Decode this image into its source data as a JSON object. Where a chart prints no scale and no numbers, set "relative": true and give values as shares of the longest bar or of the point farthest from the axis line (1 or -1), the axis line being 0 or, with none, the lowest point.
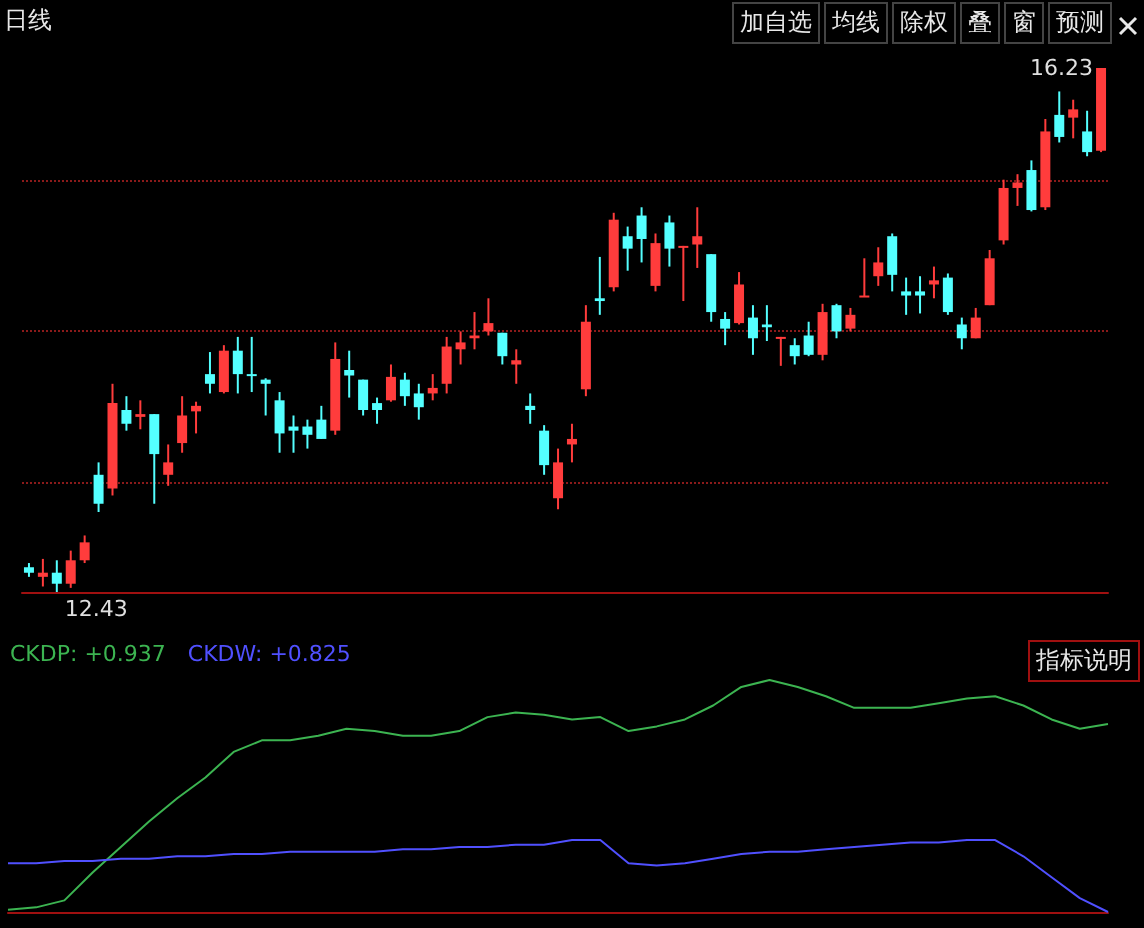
{
  "chart_data": [
    {
      "type": "candlestick",
      "categories": [
        null,
        null,
        null,
        null,
        null,
        null,
        null,
        null,
        null,
        null,
        null,
        null,
        null,
        null,
        null,
        null,
        null,
        null,
        null,
        null,
        null,
        null,
        null,
        null,
        null,
        null,
        null,
        null,
        null,
        null,
        null,
        null,
        null,
        null,
        null,
        null,
        null,
        null,
        null,
        null,
        null,
        null,
        null,
        null,
        null,
        null,
        null,
        null,
        null,
        null,
        null,
        null,
        null,
        null,
        null,
        null,
        null,
        null,
        null,
        null,
        null,
        null,
        null,
        null,
        null,
        null,
        null,
        null,
        null,
        null,
        null,
        null,
        null,
        null,
        null,
        null,
        null,
        null
      ],
      "ohlc": [
        [
          12.61,
          12.64,
          12.54,
          12.57
        ],
        [
          12.54,
          12.67,
          12.47,
          12.57
        ],
        [
          12.57,
          12.66,
          12.43,
          12.49
        ],
        [
          12.49,
          12.73,
          12.46,
          12.66
        ],
        [
          12.66,
          12.84,
          12.64,
          12.79
        ],
        [
          13.28,
          13.37,
          13.01,
          13.07
        ],
        [
          13.18,
          13.94,
          13.13,
          13.8
        ],
        [
          13.75,
          13.85,
          13.6,
          13.65
        ],
        [
          13.7,
          13.82,
          13.61,
          13.72
        ],
        [
          13.72,
          13.72,
          13.07,
          13.43
        ],
        [
          13.28,
          13.5,
          13.2,
          13.37
        ],
        [
          13.51,
          13.85,
          13.44,
          13.71
        ],
        [
          13.74,
          13.81,
          13.58,
          13.78
        ],
        [
          14.01,
          14.17,
          13.87,
          13.94
        ],
        [
          13.88,
          14.22,
          13.87,
          14.18
        ],
        [
          14.18,
          14.28,
          13.87,
          14.01
        ],
        [
          14.01,
          14.28,
          13.88,
          14.0
        ],
        [
          13.97,
          13.98,
          13.71,
          13.94
        ],
        [
          13.82,
          13.88,
          13.44,
          13.58
        ],
        [
          13.63,
          13.71,
          13.44,
          13.6
        ],
        [
          13.63,
          13.68,
          13.47,
          13.57
        ],
        [
          13.68,
          13.78,
          13.54,
          13.54
        ],
        [
          13.6,
          14.24,
          13.57,
          14.12
        ],
        [
          14.04,
          14.18,
          13.84,
          14.0
        ],
        [
          13.97,
          13.97,
          13.71,
          13.75
        ],
        [
          13.8,
          13.84,
          13.65,
          13.75
        ],
        [
          13.82,
          14.08,
          13.81,
          13.99
        ],
        [
          13.97,
          14.02,
          13.78,
          13.85
        ],
        [
          13.87,
          13.94,
          13.68,
          13.77
        ],
        [
          13.87,
          14.01,
          13.82,
          13.91
        ],
        [
          13.94,
          14.28,
          13.87,
          14.21
        ],
        [
          14.19,
          14.32,
          14.08,
          14.24
        ],
        [
          14.27,
          14.46,
          14.19,
          14.29
        ],
        [
          14.32,
          14.56,
          14.29,
          14.38
        ],
        [
          14.31,
          14.31,
          14.08,
          14.14
        ],
        [
          14.08,
          14.19,
          13.94,
          14.11
        ],
        [
          13.78,
          13.87,
          13.65,
          13.75
        ],
        [
          13.6,
          13.64,
          13.28,
          13.35
        ],
        [
          13.11,
          13.47,
          13.03,
          13.37
        ],
        [
          13.5,
          13.65,
          13.37,
          13.54
        ],
        [
          13.9,
          14.51,
          13.85,
          14.39
        ],
        [
          14.56,
          14.86,
          14.44,
          14.54
        ],
        [
          14.64,
          15.18,
          14.61,
          15.13
        ],
        [
          15.01,
          15.08,
          14.76,
          14.92
        ],
        [
          15.16,
          15.22,
          14.82,
          14.99
        ],
        [
          14.65,
          15.03,
          14.61,
          14.96
        ],
        [
          15.11,
          15.16,
          14.79,
          14.92
        ],
        [
          14.93,
          14.94,
          14.54,
          14.94
        ],
        [
          14.95,
          15.22,
          14.78,
          15.01
        ],
        [
          14.88,
          14.88,
          14.39,
          14.46
        ],
        [
          14.41,
          14.46,
          14.22,
          14.34
        ],
        [
          14.38,
          14.75,
          14.37,
          14.66
        ],
        [
          14.42,
          14.51,
          14.15,
          14.27
        ],
        [
          14.37,
          14.51,
          14.25,
          14.35
        ],
        [
          14.27,
          14.28,
          14.07,
          14.28
        ],
        [
          14.22,
          14.27,
          14.08,
          14.14
        ],
        [
          14.29,
          14.39,
          14.14,
          14.15
        ],
        [
          14.15,
          14.52,
          14.11,
          14.46
        ],
        [
          14.51,
          14.52,
          14.27,
          14.32
        ],
        [
          14.34,
          14.49,
          14.32,
          14.44
        ],
        [
          14.57,
          14.85,
          14.57,
          14.58
        ],
        [
          14.72,
          14.93,
          14.65,
          14.82
        ],
        [
          15.01,
          15.03,
          14.61,
          14.73
        ],
        [
          14.61,
          14.71,
          14.44,
          14.58
        ],
        [
          14.61,
          14.72,
          14.45,
          14.58
        ],
        [
          14.66,
          14.79,
          14.56,
          14.69
        ],
        [
          14.71,
          14.74,
          14.44,
          14.46
        ],
        [
          14.37,
          14.42,
          14.19,
          14.27
        ],
        [
          14.27,
          14.49,
          14.27,
          14.42
        ],
        [
          14.51,
          14.91,
          14.51,
          14.85
        ],
        [
          14.98,
          15.42,
          14.95,
          15.36
        ],
        [
          15.36,
          15.46,
          15.23,
          15.4
        ],
        [
          15.49,
          15.56,
          15.19,
          15.2
        ],
        [
          15.22,
          15.86,
          15.2,
          15.77
        ],
        [
          15.89,
          16.06,
          15.69,
          15.73
        ],
        [
          15.87,
          16.0,
          15.72,
          15.93
        ],
        [
          15.77,
          15.92,
          15.59,
          15.62
        ],
        [
          15.63,
          16.23,
          15.62,
          16.23
        ]
      ],
      "annotations": [
        "16.23",
        "12.43",
        "日线",
        "加自选",
        "均线",
        "除权",
        "叠",
        "窗",
        "预测"
      ],
      "yticks": [
        {
          "value": 15.42,
          "label": null
        },
        {
          "value": 14.32,
          "label": null
        },
        {
          "value": 13.23,
          "label": null
        }
      ],
      "grid": "y"
    },
    {
      "type": "line",
      "relative": true,
      "categories": [
        null,
        null,
        null,
        null,
        null,
        null,
        null,
        null,
        null,
        null,
        null,
        null,
        null,
        null,
        null,
        null,
        null,
        null,
        null,
        null,
        null,
        null,
        null,
        null,
        null,
        null,
        null,
        null,
        null,
        null,
        null,
        null,
        null,
        null,
        null,
        null,
        null,
        null,
        null,
        null
      ],
      "series": [
        {
          "name": "CKDP: +0.937",
          "color": "#3cb451",
          "values": [
            0.01,
            0.02,
            0.05,
            0.17,
            0.28,
            0.39,
            0.49,
            0.58,
            0.69,
            0.74,
            0.74,
            0.76,
            0.79,
            0.78,
            0.76,
            0.76,
            0.78,
            0.84,
            0.86,
            0.85,
            0.83,
            0.84,
            0.78,
            0.8,
            0.83,
            0.89,
            0.97,
            1,
            0.97,
            0.93,
            0.88,
            0.88,
            0.88,
            0.9,
            0.92,
            0.93,
            0.89,
            0.83,
            0.79,
            0.81
          ]
        },
        {
          "name": "CKDW: +0.825",
          "color": "#5050ff",
          "values": [
            0.21,
            0.21,
            0.22,
            0.22,
            0.23,
            0.23,
            0.24,
            0.24,
            0.25,
            0.25,
            0.26,
            0.26,
            0.26,
            0.26,
            0.27,
            0.27,
            0.28,
            0.28,
            0.29,
            0.29,
            0.31,
            0.31,
            0.21,
            0.2,
            0.21,
            0.23,
            0.25,
            0.26,
            0.26,
            0.27,
            0.28,
            0.29,
            0.3,
            0.3,
            0.31,
            0.31,
            0.24,
            0.15,
            0.06,
            0
          ]
        }
      ],
      "annotations": [
        "指标说明"
      ],
      "legend": "top left"
    }
  ]
}
